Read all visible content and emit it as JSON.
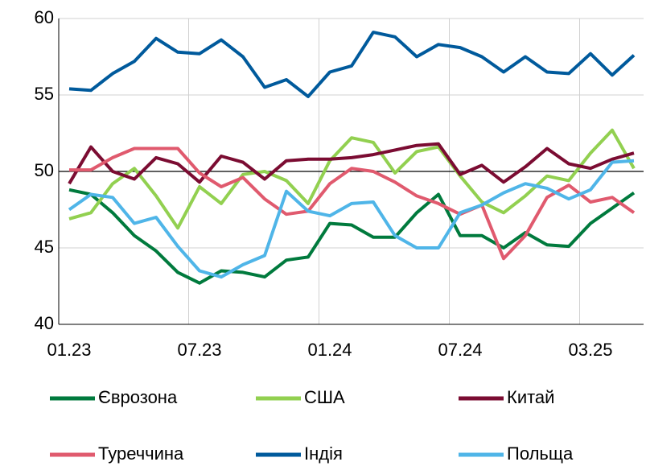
{
  "chart_data": {
    "type": "line",
    "categories": [
      "01.23",
      null,
      null,
      null,
      null,
      null,
      "07.23",
      null,
      null,
      null,
      null,
      null,
      "01.24",
      null,
      null,
      null,
      null,
      null,
      "07.24",
      null,
      null,
      null,
      null,
      null,
      "03.25",
      null,
      null
    ],
    "ylim": [
      40,
      60
    ],
    "yticks": [
      40,
      45,
      50,
      55,
      60
    ],
    "grid": true,
    "reference_line": 50,
    "series": [
      {
        "name": "Єврозона",
        "color": "#007a3d",
        "values": [
          48.8,
          48.5,
          47.3,
          45.8,
          44.8,
          43.4,
          42.7,
          43.5,
          43.4,
          43.1,
          44.2,
          44.4,
          46.6,
          46.5,
          45.7,
          45.7,
          47.3,
          48.5,
          45.8,
          45.8,
          45.0,
          46.0,
          45.2,
          45.1,
          46.6,
          47.6,
          48.6
        ]
      },
      {
        "name": "США",
        "color": "#92d050",
        "values": [
          46.9,
          47.3,
          49.2,
          50.2,
          48.4,
          46.3,
          49.0,
          47.9,
          49.8,
          50.0,
          49.4,
          47.9,
          50.7,
          52.2,
          51.9,
          49.9,
          51.3,
          51.6,
          49.7,
          48.0,
          47.3,
          48.4,
          49.7,
          49.4,
          51.2,
          52.7,
          50.2
        ]
      },
      {
        "name": "Китай",
        "color": "#7b0c32",
        "values": [
          49.2,
          51.6,
          50.0,
          49.5,
          50.9,
          50.5,
          49.3,
          51.0,
          50.6,
          49.5,
          50.7,
          50.8,
          50.8,
          50.9,
          51.1,
          51.4,
          51.7,
          51.8,
          49.8,
          50.4,
          49.3,
          50.3,
          51.5,
          50.5,
          50.2,
          50.8,
          51.2
        ]
      },
      {
        "name": "Туреччина",
        "color": "#e05a6e",
        "values": [
          50.1,
          50.1,
          50.9,
          51.5,
          51.5,
          51.5,
          49.9,
          49.0,
          49.6,
          48.2,
          47.2,
          47.4,
          49.2,
          50.2,
          50.0,
          49.3,
          48.4,
          47.9,
          47.2,
          47.8,
          44.3,
          45.8,
          48.3,
          49.1,
          48.0,
          48.3,
          47.3
        ]
      },
      {
        "name": "Індія",
        "color": "#005a9c",
        "values": [
          55.4,
          55.3,
          56.4,
          57.2,
          58.7,
          57.8,
          57.7,
          58.6,
          57.5,
          55.5,
          56.0,
          54.9,
          56.5,
          56.9,
          59.1,
          58.8,
          57.5,
          58.3,
          58.1,
          57.5,
          56.5,
          57.5,
          56.5,
          56.4,
          57.7,
          56.3,
          57.6
        ]
      },
      {
        "name": "Польща",
        "color": "#4fb5e8",
        "values": [
          47.5,
          48.5,
          48.3,
          46.6,
          47.0,
          45.1,
          43.5,
          43.1,
          43.9,
          44.5,
          48.7,
          47.4,
          47.1,
          47.9,
          48.0,
          45.8,
          45.0,
          45.0,
          47.3,
          47.8,
          48.6,
          49.2,
          48.9,
          48.2,
          48.8,
          50.6,
          50.7
        ]
      }
    ]
  }
}
